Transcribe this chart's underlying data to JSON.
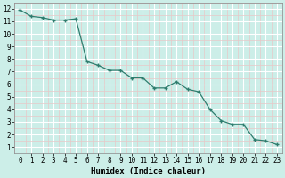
{
  "x": [
    0,
    1,
    2,
    3,
    4,
    5,
    6,
    7,
    8,
    9,
    10,
    11,
    12,
    13,
    14,
    15,
    16,
    17,
    18,
    19,
    20,
    21,
    22,
    23
  ],
  "y": [
    11.9,
    11.4,
    11.3,
    11.1,
    11.1,
    11.2,
    7.8,
    7.5,
    7.1,
    7.1,
    6.5,
    6.5,
    5.7,
    5.7,
    6.2,
    5.6,
    5.4,
    4.0,
    3.1,
    2.8,
    2.8,
    1.6,
    1.5,
    1.2
  ],
  "line_color": "#2e7d6e",
  "marker": "+",
  "bg_color": "#cceee8",
  "grid_major_color": "#ffffff",
  "grid_minor_color": "#e8c8c8",
  "xlabel": "Humidex (Indice chaleur)",
  "xlim": [
    -0.5,
    23.5
  ],
  "ylim": [
    0.5,
    12.5
  ],
  "yticks": [
    1,
    2,
    3,
    4,
    5,
    6,
    7,
    8,
    9,
    10,
    11,
    12
  ],
  "xticks": [
    0,
    1,
    2,
    3,
    4,
    5,
    6,
    7,
    8,
    9,
    10,
    11,
    12,
    13,
    14,
    15,
    16,
    17,
    18,
    19,
    20,
    21,
    22,
    23
  ],
  "label_fontsize": 6.5,
  "tick_fontsize": 5.5
}
